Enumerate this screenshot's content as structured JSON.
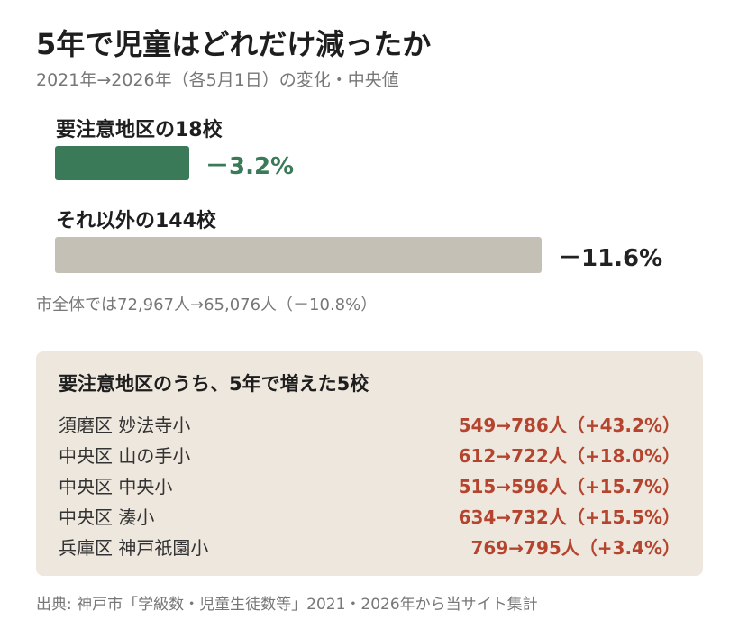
{
  "title": "5年で児童はどれだけ減ったか",
  "subtitle": "2021年→2026年（各5月1日）の変化・中央値",
  "colors": {
    "highlight_bar": "#3a7a58",
    "other_bar": "#c4c0b6",
    "highlight_text": "#3a7a58",
    "other_text": "#222222",
    "increase_text": "#b5442f",
    "panel_bg": "#eee7dd"
  },
  "chart_data": {
    "type": "bar",
    "orientation": "horizontal",
    "title": "5年で児童はどれだけ減ったか",
    "subtitle": "2021年→2026年（各5月1日）の変化・中央値",
    "unit": "%",
    "categories": [
      "要注意地区の18校",
      "それ以外の144校"
    ],
    "values": [
      -3.2,
      -11.6
    ],
    "value_labels": [
      "－3.2%",
      "－11.6%"
    ],
    "xlim": [
      0,
      -11.6
    ],
    "grid": false,
    "legend": "none"
  },
  "note": "市全体では72,967人→65,076人（－10.8%）",
  "panel": {
    "title": "要注意地区のうち、5年で増えた5校",
    "rows": [
      {
        "name": "須磨区 妙法寺小",
        "value": "549→786人（+43.2%）"
      },
      {
        "name": "中央区 山の手小",
        "value": "612→722人（+18.0%）"
      },
      {
        "name": "中央区 中央小",
        "value": "515→596人（+15.7%）"
      },
      {
        "name": "中央区 湊小",
        "value": "634→732人（+15.5%）"
      },
      {
        "name": "兵庫区 神戸祇園小",
        "value": "769→795人（+3.4%）"
      }
    ]
  },
  "source": "出典: 神戸市「学級数・児童生徒数等」2021・2026年から当サイト集計"
}
